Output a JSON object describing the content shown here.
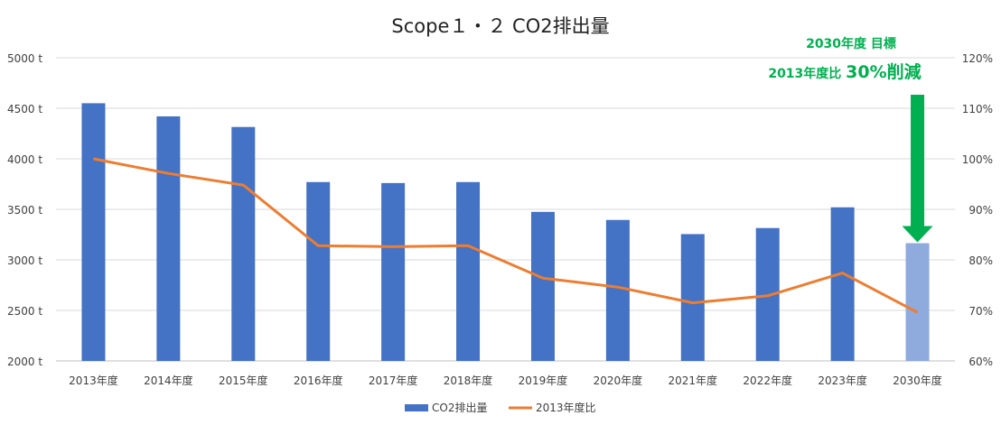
{
  "chart_data": {
    "type": "bar",
    "title": "Scope１・２ CO2排出量",
    "categories": [
      "2013年度",
      "2014年度",
      "2015年度",
      "2016年度",
      "2017年度",
      "2018年度",
      "2019年度",
      "2020年度",
      "2021年度",
      "2022年度",
      "2023年度",
      "2030年度"
    ],
    "series": [
      {
        "name": "CO2排出量",
        "type": "bar",
        "axis": "left",
        "values": [
          4550,
          4420,
          4315,
          3770,
          3760,
          3770,
          3475,
          3395,
          3255,
          3315,
          3520,
          3165
        ],
        "color": "#4472c4",
        "highlight_color": "#8faadc",
        "highlight_index": 11
      },
      {
        "name": "2013年度比",
        "type": "line",
        "axis": "right",
        "values": [
          100,
          97.1,
          94.8,
          82.8,
          82.6,
          82.8,
          76.4,
          74.6,
          71.5,
          72.9,
          77.4,
          69.6
        ],
        "color": "#ed7d31"
      }
    ],
    "y_left": {
      "min": 2000,
      "max": 5000,
      "step": 500,
      "ticks": [
        "2000 t",
        "2500 t",
        "3000 t",
        "3500 t",
        "4000 t",
        "4500 t",
        "5000 t"
      ]
    },
    "y_right": {
      "min": 60,
      "max": 120,
      "step": 10,
      "ticks": [
        "60%",
        "70%",
        "80%",
        "90%",
        "100%",
        "110%",
        "120%"
      ]
    },
    "grid": true,
    "legend": "bottom",
    "annotation": {
      "line1": "2030年度 目標",
      "line2_prefix": "2013年度比 ",
      "line2_emphasis": "30%削減",
      "color": "#00b050",
      "arrow_color": "#00b050",
      "target_index": 11
    }
  }
}
